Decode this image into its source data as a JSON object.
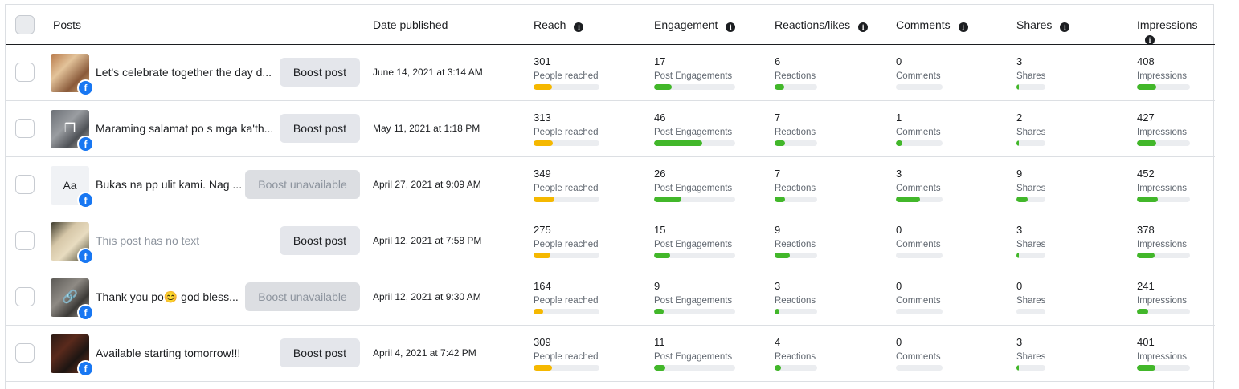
{
  "header": {
    "posts": "Posts",
    "date": "Date published",
    "reach": "Reach",
    "engagement": "Engagement",
    "reactions": "Reactions/likes",
    "comments": "Comments",
    "shares": "Shares",
    "impressions": "Impressions"
  },
  "labels": {
    "reach": "People reached",
    "engagement": "Post Engagements",
    "reactions": "Reactions",
    "comments": "Comments",
    "shares": "Shares",
    "impressions": "Impressions"
  },
  "rows": [
    {
      "text": "Let's celebrate together the day d...",
      "boost": "Boost post",
      "boost_enabled": true,
      "date": "June 14, 2021 at 3:14 AM",
      "reach": "301",
      "engagement": "17",
      "reactions": "6",
      "comments": "0",
      "shares": "3",
      "impressions": "408",
      "fills": {
        "reach": 0.28,
        "engagement": 0.22,
        "reactions": 0.22,
        "comments": 0.0,
        "shares": 0.06,
        "impressions": 0.36
      }
    },
    {
      "text": "Maraming salamat po s mga ka'th...",
      "boost": "Boost post",
      "boost_enabled": true,
      "date": "May 11, 2021 at 1:18 PM",
      "reach": "313",
      "engagement": "46",
      "reactions": "7",
      "comments": "1",
      "shares": "2",
      "impressions": "427",
      "fills": {
        "reach": 0.29,
        "engagement": 0.59,
        "reactions": 0.25,
        "comments": 0.14,
        "shares": 0.05,
        "impressions": 0.37
      }
    },
    {
      "text": "Bukas na pp ulit kami. Nag ...",
      "boost": "Boost unavailable",
      "boost_enabled": false,
      "date": "April 27, 2021 at 9:09 AM",
      "reach": "349",
      "engagement": "26",
      "reactions": "7",
      "comments": "3",
      "shares": "9",
      "impressions": "452",
      "fills": {
        "reach": 0.32,
        "engagement": 0.34,
        "reactions": 0.25,
        "comments": 0.52,
        "shares": 0.4,
        "impressions": 0.39
      }
    },
    {
      "text": "This post has no text",
      "muted": true,
      "boost": "Boost post",
      "boost_enabled": true,
      "date": "April 12, 2021 at 7:58 PM",
      "reach": "275",
      "engagement": "15",
      "reactions": "9",
      "comments": "0",
      "shares": "3",
      "impressions": "378",
      "fills": {
        "reach": 0.25,
        "engagement": 0.2,
        "reactions": 0.35,
        "comments": 0.0,
        "shares": 0.06,
        "impressions": 0.33
      }
    },
    {
      "text": "Thank you po😊 god bless...",
      "boost": "Boost unavailable",
      "boost_enabled": false,
      "date": "April 12, 2021 at 9:30 AM",
      "reach": "164",
      "engagement": "9",
      "reactions": "3",
      "comments": "0",
      "shares": "0",
      "impressions": "241",
      "fills": {
        "reach": 0.15,
        "engagement": 0.12,
        "reactions": 0.12,
        "comments": 0.0,
        "shares": 0.0,
        "impressions": 0.21
      }
    },
    {
      "text": "Available starting tomorrow!!!",
      "boost": "Boost post",
      "boost_enabled": true,
      "date": "April 4, 2021 at 7:42 PM",
      "reach": "309",
      "engagement": "11",
      "reactions": "4",
      "comments": "0",
      "shares": "3",
      "impressions": "401",
      "fills": {
        "reach": 0.28,
        "engagement": 0.14,
        "reactions": 0.15,
        "comments": 0.0,
        "shares": 0.06,
        "impressions": 0.35
      }
    }
  ],
  "thumbs": [
    "food-photo",
    "gallery-photo",
    "text-post",
    "poster-photo",
    "link-photo",
    "menu-photo"
  ],
  "thumb_text": "Aa",
  "colors": {
    "reach": "#f5b800",
    "metric": "#42b72a",
    "facebook": "#1877f2"
  },
  "icons": {
    "info": "info-icon",
    "platform": "facebook-icon"
  }
}
